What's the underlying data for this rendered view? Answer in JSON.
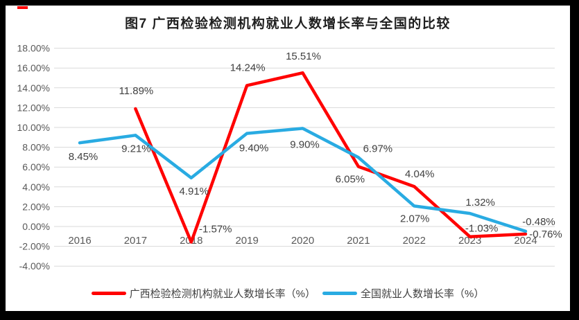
{
  "title": "图7 广西检验检测机构就业人数增长率与全国的比较",
  "chart_data": {
    "type": "line",
    "title": "图7 广西检验检测机构就业人数增长率与全国的比较",
    "categories": [
      "2016",
      "2017",
      "2018",
      "2019",
      "2020",
      "2021",
      "2022",
      "2023",
      "2024"
    ],
    "series": [
      {
        "name": "广西检验检测机构就业人数增长率（%）",
        "color": "#ff0000",
        "values": [
          null,
          11.89,
          -1.57,
          14.24,
          15.51,
          6.05,
          4.04,
          -1.03,
          -0.76
        ],
        "label_offsets": [
          null,
          [
            1,
            -26
          ],
          [
            35,
            -19
          ],
          [
            1,
            -26
          ],
          [
            1,
            -24
          ],
          [
            -12,
            18
          ],
          [
            8,
            -18
          ],
          [
            17,
            -12
          ],
          [
            29,
            0
          ]
        ]
      },
      {
        "name": "全国就业人数增长率（%）",
        "color": "#29abe2",
        "values": [
          8.45,
          9.21,
          4.91,
          9.4,
          9.9,
          6.97,
          2.07,
          1.32,
          -0.48
        ],
        "label_offsets": [
          [
            5,
            20
          ],
          [
            1,
            19
          ],
          [
            4,
            19
          ],
          [
            10,
            21
          ],
          [
            3,
            23
          ],
          [
            28,
            -13
          ],
          [
            1,
            18
          ],
          [
            15,
            -16
          ],
          [
            19,
            -14
          ]
        ]
      }
    ],
    "y_axis": {
      "min": -4,
      "max": 18,
      "step": 2,
      "ticks": [
        "18.00%",
        "16.00%",
        "14.00%",
        "12.00%",
        "10.00%",
        "8.00%",
        "6.00%",
        "4.00%",
        "2.00%",
        "0.00%",
        "-2.00%",
        "-4.00%"
      ]
    },
    "grid": true,
    "legend_position": "bottom",
    "data_label_format": "0.00%",
    "colors": {
      "gridline": "#d9d9d9",
      "axis_text": "#595959",
      "data_label": "#404040",
      "title_text": "#1f1f1f",
      "legend_text": "#404040"
    }
  }
}
